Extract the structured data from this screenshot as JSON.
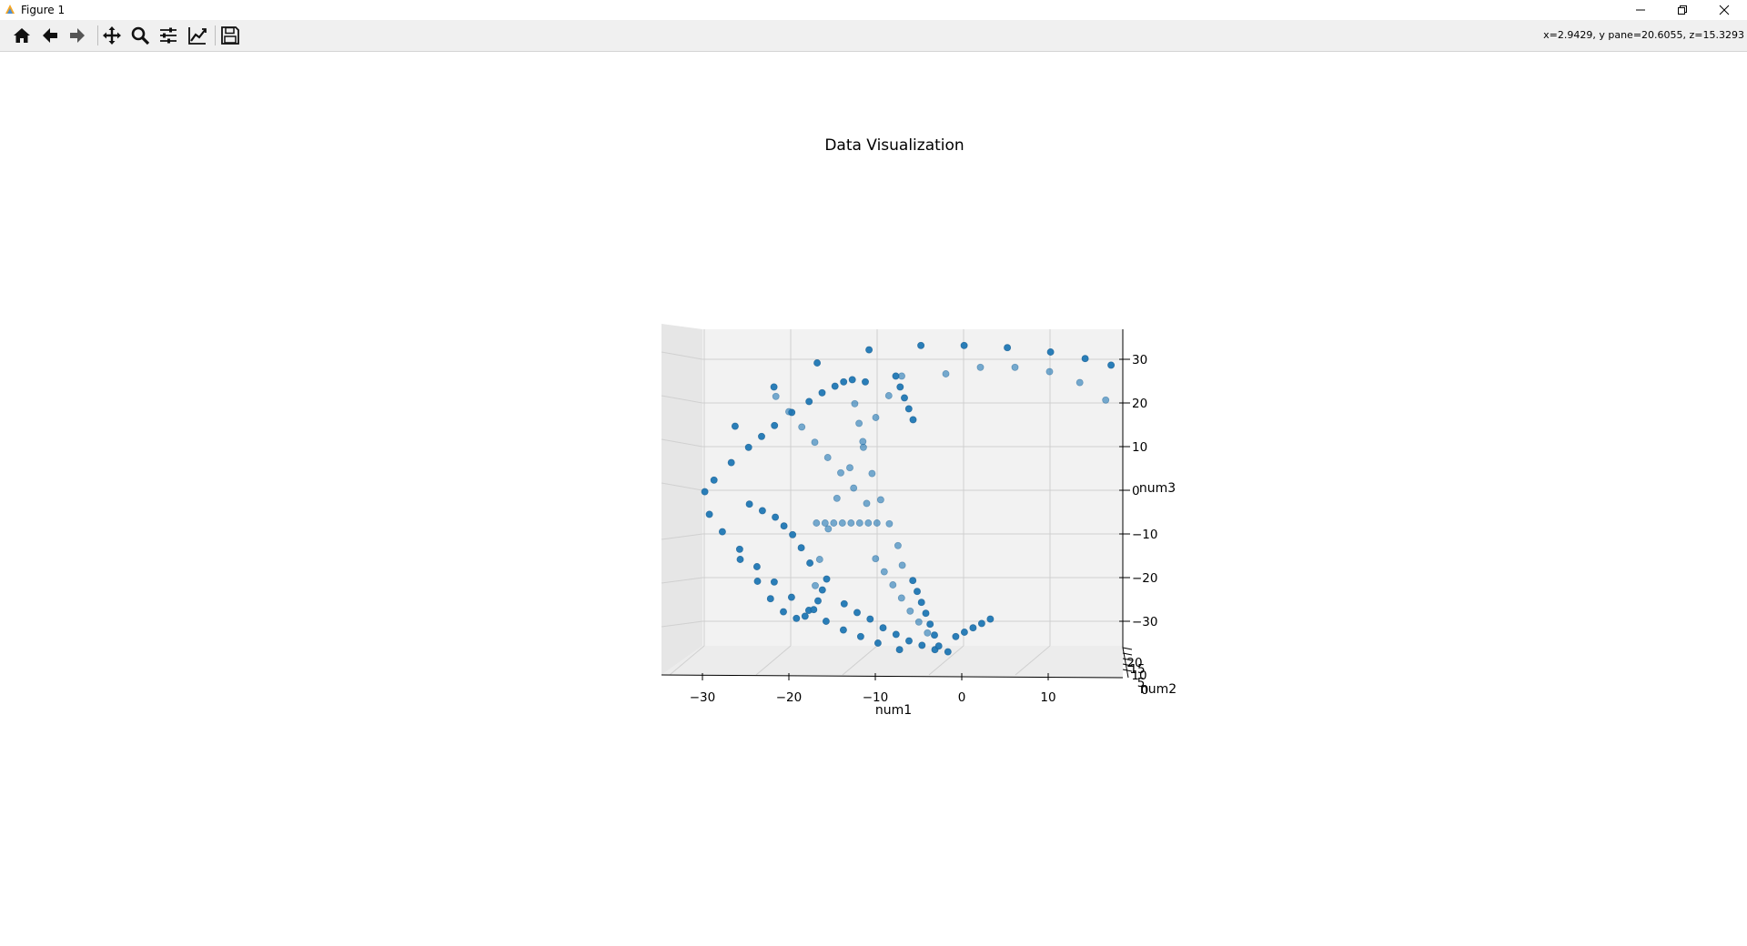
{
  "window": {
    "title": "Figure 1",
    "minimize_icon": "minimize-icon",
    "restore_icon": "restore-icon",
    "close_icon": "close-icon"
  },
  "toolbar": {
    "buttons": [
      "home-icon",
      "back-arrow-icon",
      "forward-arrow-icon",
      "pan-icon",
      "zoom-icon",
      "configure-subplots-icon",
      "edit-axes-icon",
      "save-icon"
    ],
    "coordinates": "x=2.9429, y pane=20.6055, z=15.3293"
  },
  "chart_data": {
    "type": "scatter",
    "projection": "3d",
    "title": "Data Visualization",
    "xlabel": "num1",
    "ylabel": "num2",
    "zlabel": "num3",
    "x_ticks": [
      "−30",
      "−20",
      "−10",
      "0",
      "10"
    ],
    "y_ticks": [
      "0",
      "5",
      "10",
      "15",
      "20"
    ],
    "z_ticks": [
      "30",
      "20",
      "10",
      "0",
      "−10",
      "−20",
      "−30"
    ],
    "xlim": [
      -35,
      19
    ],
    "ylim": [
      0,
      20
    ],
    "zlim": [
      -37,
      37
    ],
    "color": "#1f77b4",
    "grid": true,
    "series": [
      {
        "x": [
          -30.0,
          -26.5,
          -22.0,
          -17.0,
          -11.0,
          -5.0,
          0.0,
          5.0,
          10.0,
          14.0,
          17.0
        ],
        "z": [
          0.0,
          15.0,
          24.0,
          29.5,
          32.5,
          33.5,
          33.5,
          33.0,
          32.0,
          30.5,
          29.0
        ],
        "y": [
          2,
          2,
          2,
          2,
          2,
          2,
          2,
          2,
          2,
          2,
          2
        ]
      },
      {
        "x": [
          -2.5,
          1.5,
          5.5,
          9.5,
          13.0,
          16.0
        ],
        "z": [
          29.0,
          30.5,
          30.5,
          29.5,
          27.0,
          23.0
        ],
        "y": [
          14,
          14,
          14,
          14,
          14,
          14
        ]
      },
      {
        "x": [
          -29.0,
          -27.0,
          -25.0,
          -23.5,
          -22.0,
          -20.0,
          -18.0,
          -16.5,
          -15.0,
          -14.0,
          -13.0,
          -11.5
        ],
        "z": [
          3.0,
          7.0,
          10.5,
          13.0,
          15.5,
          18.5,
          21.0,
          23.0,
          24.5,
          25.5,
          26.0,
          25.5
        ],
        "y": [
          4,
          4,
          4,
          4,
          4,
          4,
          4,
          4,
          4,
          4,
          4,
          4
        ]
      },
      {
        "x": [
          -29.5,
          -28.0,
          -26.0,
          -24.0,
          -22.0,
          -20.0,
          -18.0,
          -16.0,
          -14.0,
          -12.0,
          -10.0,
          -7.5
        ],
        "z": [
          -5.0,
          -9.0,
          -13.0,
          -17.0,
          -20.5,
          -24.0,
          -27.0,
          -29.5,
          -31.5,
          -33.0,
          -34.5,
          -36.0
        ],
        "y": [
          3,
          3,
          3,
          3,
          3,
          3,
          3,
          3,
          3,
          3,
          3,
          3
        ]
      },
      {
        "x": [
          -26.0,
          -24.0,
          -22.5,
          -21.0,
          -19.5,
          -18.5,
          -17.5,
          -17.0,
          -16.5,
          -16.0
        ],
        "z": [
          -15.0,
          -20.0,
          -24.0,
          -27.0,
          -28.5,
          -28.0,
          -26.5,
          -24.5,
          -22.0,
          -19.5
        ],
        "y": [
          5,
          5,
          5,
          5,
          5,
          5,
          5,
          5,
          5,
          5
        ]
      },
      {
        "x": [
          -14.0,
          -12.5,
          -11.0,
          -9.5,
          -8.0,
          -6.5,
          -5.0,
          -3.5,
          -2.0
        ],
        "z": [
          -25.0,
          -27.0,
          -28.5,
          -30.5,
          -32.0,
          -33.5,
          -34.5,
          -35.5,
          -36.0
        ],
        "y": [
          6,
          6,
          6,
          6,
          6,
          6,
          6,
          6,
          6
        ]
      },
      {
        "x": [
          -1.0,
          0.0,
          1.0,
          2.0,
          3.0
        ],
        "z": [
          -33.0,
          -32.0,
          -31.0,
          -30.0,
          -29.0
        ],
        "y": [
          3,
          3,
          3,
          3,
          3
        ]
      },
      {
        "x": [
          -6.0,
          -5.5,
          -5.0,
          -4.5,
          -4.0,
          -3.5,
          -3.0
        ],
        "z": [
          -20.0,
          -22.5,
          -25.0,
          -27.5,
          -30.0,
          -32.5,
          -35.0
        ],
        "y": [
          4,
          4,
          4,
          4,
          4,
          4,
          4
        ]
      },
      {
        "x": [
          -7.5,
          -8.0,
          -9.0,
          -10.0,
          -11.0,
          -12.0,
          -12.5,
          -13.0
        ],
        "z": [
          -15.0,
          -10.5,
          -5.5,
          0.0,
          6.0,
          12.0,
          17.5,
          22.0
        ],
        "y": [
          13,
          13,
          13,
          13,
          13,
          13,
          13,
          13
        ]
      },
      {
        "x": [
          -17.5,
          -17.0,
          -16.0,
          -15.0,
          -13.5,
          -12.0,
          -10.5,
          -9.0,
          -7.5
        ],
        "z": [
          -20.0,
          -14.0,
          -7.0,
          0.0,
          7.0,
          13.0,
          18.5,
          23.5,
          28.0
        ],
        "y": [
          11,
          11,
          11,
          11,
          11,
          11,
          11,
          11,
          11
        ]
      },
      {
        "x": [
          -17.5,
          -16.5,
          -15.5,
          -14.5,
          -13.5,
          -12.5,
          -11.5,
          -10.5
        ],
        "z": [
          -5.0,
          -5.0,
          -5.0,
          -5.0,
          -5.0,
          -5.0,
          -5.0,
          -5.0
        ],
        "y": [
          15,
          15,
          15,
          15,
          15,
          15,
          15,
          15
        ]
      },
      {
        "x": [
          -8.0,
          -7.5,
          -7.0,
          -6.5,
          -6.0
        ],
        "z": [
          27.0,
          24.5,
          22.0,
          19.5,
          17.0
        ],
        "y": [
          5,
          5,
          5,
          5,
          5
        ]
      },
      {
        "x": [
          -25.0,
          -23.5,
          -22.0,
          -21.0,
          -20.0,
          -19.0,
          -18.0
        ],
        "z": [
          -2.0,
          -3.5,
          -5.0,
          -7.0,
          -9.0,
          -12.0,
          -15.5
        ],
        "y": [
          7,
          7,
          7,
          7,
          7,
          7,
          7
        ]
      },
      {
        "x": [
          -10.5,
          -9.5,
          -8.5,
          -7.5,
          -6.5,
          -5.5,
          -4.5
        ],
        "z": [
          -14.0,
          -17.0,
          -20.0,
          -23.0,
          -26.0,
          -28.5,
          -31.0
        ],
        "y": [
          10,
          10,
          10,
          10,
          10,
          10,
          10
        ]
      },
      {
        "x": [
          -22.0,
          -20.5,
          -19.0,
          -17.5,
          -16.0,
          -14.5,
          -13.0,
          -11.5
        ],
        "z": [
          23.0,
          19.5,
          16.0,
          12.5,
          9.0,
          5.5,
          2.0,
          -1.5
        ],
        "y": [
          9,
          9,
          9,
          9,
          9,
          9,
          9,
          9
        ]
      }
    ]
  }
}
